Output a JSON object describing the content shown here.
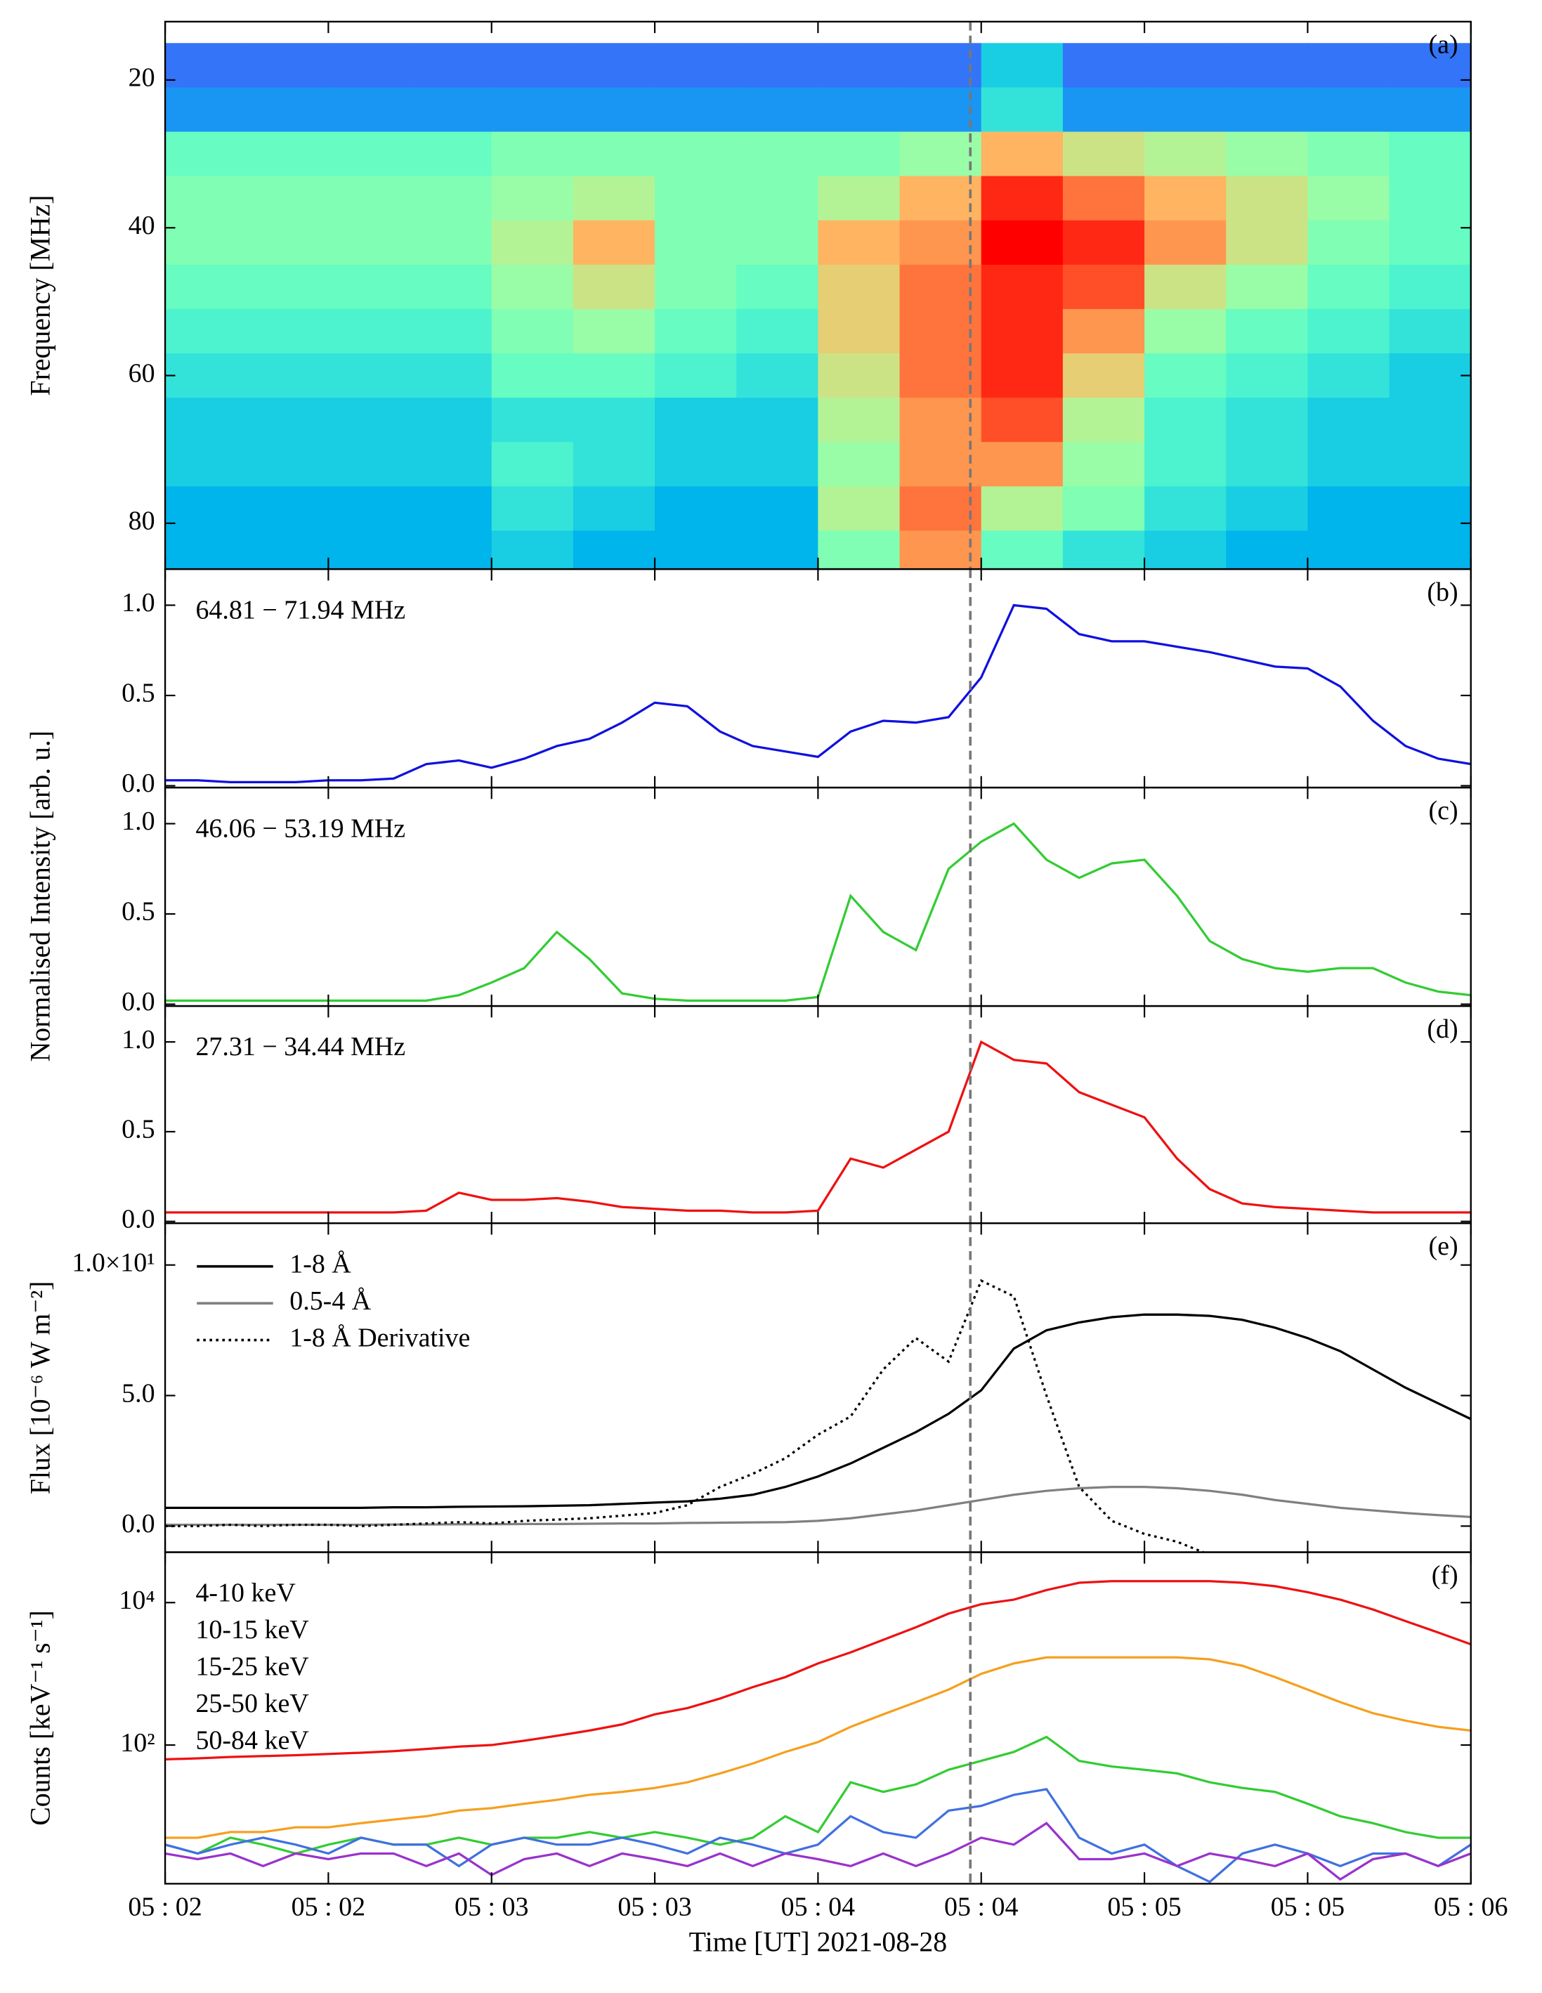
{
  "chart_data": [
    {
      "type": "heatmap",
      "panel_label": "(a)",
      "ylabel": "Frequency [MHz]",
      "colormap": "rainbow",
      "xlim": [
        0,
        240
      ],
      "ylim": [
        86.2,
        12.1
      ],
      "yticks": [
        20,
        40,
        60,
        80
      ],
      "vline": 148,
      "x_edges": [
        0,
        15,
        30,
        45,
        60,
        75,
        90,
        105,
        120,
        135,
        150,
        165,
        180,
        195,
        210,
        225,
        240
      ],
      "y_edges": [
        15,
        21,
        27,
        33,
        39,
        45,
        51,
        57,
        63,
        69,
        75,
        81,
        86
      ],
      "z": [
        [
          0.15,
          0.15,
          0.15,
          0.15,
          0.15,
          0.15,
          0.15,
          0.15,
          0.15,
          0.15,
          0.3,
          0.15,
          0.15,
          0.15,
          0.15,
          0.15
        ],
        [
          0.2,
          0.2,
          0.2,
          0.2,
          0.2,
          0.2,
          0.2,
          0.2,
          0.2,
          0.2,
          0.35,
          0.2,
          0.2,
          0.2,
          0.2,
          0.2
        ],
        [
          0.45,
          0.45,
          0.45,
          0.45,
          0.5,
          0.5,
          0.5,
          0.5,
          0.5,
          0.55,
          0.75,
          0.65,
          0.6,
          0.55,
          0.5,
          0.45
        ],
        [
          0.5,
          0.5,
          0.5,
          0.5,
          0.55,
          0.6,
          0.5,
          0.5,
          0.6,
          0.75,
          0.95,
          0.85,
          0.75,
          0.65,
          0.55,
          0.45
        ],
        [
          0.5,
          0.5,
          0.5,
          0.5,
          0.6,
          0.75,
          0.5,
          0.5,
          0.75,
          0.8,
          1.0,
          0.95,
          0.8,
          0.65,
          0.5,
          0.45
        ],
        [
          0.45,
          0.45,
          0.45,
          0.45,
          0.55,
          0.65,
          0.5,
          0.45,
          0.7,
          0.85,
          0.95,
          0.9,
          0.65,
          0.55,
          0.45,
          0.4
        ],
        [
          0.4,
          0.4,
          0.4,
          0.4,
          0.5,
          0.55,
          0.45,
          0.4,
          0.7,
          0.85,
          0.95,
          0.8,
          0.55,
          0.45,
          0.4,
          0.35
        ],
        [
          0.35,
          0.35,
          0.35,
          0.35,
          0.45,
          0.45,
          0.4,
          0.35,
          0.65,
          0.85,
          0.95,
          0.7,
          0.45,
          0.4,
          0.35,
          0.3
        ],
        [
          0.3,
          0.3,
          0.3,
          0.3,
          0.35,
          0.35,
          0.3,
          0.3,
          0.6,
          0.8,
          0.9,
          0.6,
          0.4,
          0.35,
          0.3,
          0.3
        ],
        [
          0.3,
          0.3,
          0.3,
          0.3,
          0.4,
          0.35,
          0.3,
          0.3,
          0.55,
          0.8,
          0.8,
          0.55,
          0.4,
          0.35,
          0.3,
          0.3
        ],
        [
          0.25,
          0.25,
          0.25,
          0.25,
          0.35,
          0.3,
          0.25,
          0.25,
          0.6,
          0.85,
          0.6,
          0.5,
          0.35,
          0.3,
          0.25,
          0.25
        ],
        [
          0.25,
          0.25,
          0.25,
          0.25,
          0.3,
          0.25,
          0.25,
          0.25,
          0.5,
          0.8,
          0.45,
          0.35,
          0.3,
          0.25,
          0.25,
          0.25
        ]
      ]
    },
    {
      "type": "line",
      "panel_label": "(b)",
      "ylabel": "Normalised Intensity [arb. u.]",
      "legend": "upper left",
      "legend_style": "text",
      "xlim": [
        0,
        240
      ],
      "ylim": [
        -0.01,
        1.2
      ],
      "yticks": [
        {
          "value": 0,
          "label": "0.0"
        },
        0.5,
        {
          "value": 1,
          "label": "1.0"
        }
      ],
      "vline": 148,
      "x": [
        0,
        6,
        12,
        18,
        24,
        30,
        36,
        42,
        48,
        54,
        60,
        66,
        72,
        78,
        84,
        90,
        96,
        102,
        108,
        114,
        120,
        126,
        132,
        138,
        144,
        150,
        156,
        162,
        168,
        174,
        180,
        186,
        192,
        198,
        204,
        210,
        216,
        222,
        228,
        234,
        240
      ],
      "series": [
        {
          "name": "64.81 − 71.94 MHz",
          "color": "#1010e0",
          "values": [
            0.03,
            0.03,
            0.02,
            0.02,
            0.02,
            0.03,
            0.03,
            0.04,
            0.12,
            0.14,
            0.1,
            0.15,
            0.22,
            0.26,
            0.35,
            0.46,
            0.44,
            0.3,
            0.22,
            0.19,
            0.16,
            0.3,
            0.36,
            0.35,
            0.38,
            0.6,
            1.0,
            0.98,
            0.84,
            0.8,
            0.8,
            0.77,
            0.74,
            0.7,
            0.66,
            0.65,
            0.55,
            0.36,
            0.22,
            0.15,
            0.12
          ]
        }
      ]
    },
    {
      "type": "line",
      "panel_label": "(c)",
      "legend": "upper left",
      "legend_style": "text",
      "xlim": [
        0,
        240
      ],
      "ylim": [
        -0.01,
        1.2
      ],
      "yticks": [
        {
          "value": 0,
          "label": "0.0"
        },
        0.5,
        {
          "value": 1,
          "label": "1.0"
        }
      ],
      "vline": 148,
      "x": [
        0,
        6,
        12,
        18,
        24,
        30,
        36,
        42,
        48,
        54,
        60,
        66,
        72,
        78,
        84,
        90,
        96,
        102,
        108,
        114,
        120,
        126,
        132,
        138,
        144,
        150,
        156,
        162,
        168,
        174,
        180,
        186,
        192,
        198,
        204,
        210,
        216,
        222,
        228,
        234,
        240
      ],
      "series": [
        {
          "name": "46.06 − 53.19 MHz",
          "color": "#33cc33",
          "values": [
            0.02,
            0.02,
            0.02,
            0.02,
            0.02,
            0.02,
            0.02,
            0.02,
            0.02,
            0.05,
            0.12,
            0.2,
            0.4,
            0.25,
            0.06,
            0.03,
            0.02,
            0.02,
            0.02,
            0.02,
            0.04,
            0.6,
            0.4,
            0.3,
            0.75,
            0.9,
            1.0,
            0.8,
            0.7,
            0.78,
            0.8,
            0.6,
            0.35,
            0.25,
            0.2,
            0.18,
            0.2,
            0.2,
            0.12,
            0.07,
            0.05
          ]
        }
      ]
    },
    {
      "type": "line",
      "panel_label": "(d)",
      "legend": "upper left",
      "legend_style": "text",
      "xlim": [
        0,
        240
      ],
      "ylim": [
        -0.01,
        1.2
      ],
      "yticks": [
        {
          "value": 0,
          "label": "0.0"
        },
        0.5,
        {
          "value": 1,
          "label": "1.0"
        }
      ],
      "vline": 148,
      "x": [
        0,
        6,
        12,
        18,
        24,
        30,
        36,
        42,
        48,
        54,
        60,
        66,
        72,
        78,
        84,
        90,
        96,
        102,
        108,
        114,
        120,
        126,
        132,
        138,
        144,
        150,
        156,
        162,
        168,
        174,
        180,
        186,
        192,
        198,
        204,
        210,
        216,
        222,
        228,
        234,
        240
      ],
      "series": [
        {
          "name": "27.31 − 34.44 MHz",
          "color": "#ee1111",
          "values": [
            0.05,
            0.05,
            0.05,
            0.05,
            0.05,
            0.05,
            0.05,
            0.05,
            0.06,
            0.16,
            0.12,
            0.12,
            0.13,
            0.11,
            0.08,
            0.07,
            0.06,
            0.06,
            0.05,
            0.05,
            0.06,
            0.35,
            0.3,
            0.4,
            0.5,
            1.0,
            0.9,
            0.88,
            0.72,
            0.65,
            0.58,
            0.35,
            0.18,
            0.1,
            0.08,
            0.07,
            0.06,
            0.05,
            0.05,
            0.05,
            0.05
          ]
        }
      ]
    },
    {
      "type": "line",
      "panel_label": "(e)",
      "ylabel": "Flux [10⁻⁶ W m⁻²]",
      "legend": "upper left",
      "legend_style": "lines",
      "xlim": [
        0,
        240
      ],
      "ylim": [
        -1,
        11.6
      ],
      "yticks": [
        {
          "value": 0,
          "label": "0.0"
        },
        {
          "value": 5,
          "label": "5.0"
        },
        {
          "value": 10,
          "label": "1.0×10¹"
        }
      ],
      "vline": 148,
      "x": [
        0,
        6,
        12,
        18,
        24,
        30,
        36,
        42,
        48,
        54,
        60,
        66,
        72,
        78,
        84,
        90,
        96,
        102,
        108,
        114,
        120,
        126,
        132,
        138,
        144,
        150,
        156,
        162,
        168,
        174,
        180,
        186,
        192,
        198,
        204,
        210,
        216,
        222,
        228,
        234,
        240
      ],
      "series": [
        {
          "name": "1-8 Å",
          "color": "#000000",
          "linestyle": "solid",
          "values": [
            0.7,
            0.7,
            0.7,
            0.7,
            0.7,
            0.7,
            0.7,
            0.72,
            0.72,
            0.74,
            0.75,
            0.76,
            0.78,
            0.8,
            0.85,
            0.9,
            0.95,
            1.05,
            1.2,
            1.5,
            1.9,
            2.4,
            3.0,
            3.6,
            4.3,
            5.2,
            6.8,
            7.5,
            7.8,
            8.0,
            8.1,
            8.1,
            8.05,
            7.9,
            7.6,
            7.2,
            6.7,
            6.0,
            5.3,
            4.7,
            4.1
          ]
        },
        {
          "name": "0.5-4 Å",
          "color": "#808080",
          "linestyle": "solid",
          "values": [
            0.05,
            0.05,
            0.05,
            0.05,
            0.05,
            0.05,
            0.05,
            0.06,
            0.06,
            0.07,
            0.07,
            0.08,
            0.08,
            0.09,
            0.1,
            0.1,
            0.12,
            0.13,
            0.14,
            0.15,
            0.2,
            0.3,
            0.45,
            0.6,
            0.8,
            1.0,
            1.2,
            1.35,
            1.45,
            1.5,
            1.5,
            1.45,
            1.35,
            1.2,
            1.0,
            0.85,
            0.7,
            0.6,
            0.5,
            0.42,
            0.35
          ]
        },
        {
          "name": "1-8 Å Derivative",
          "color": "#000000",
          "linestyle": "dotted",
          "values": [
            0.0,
            0.0,
            0.05,
            0.0,
            0.05,
            0.05,
            0.0,
            0.05,
            0.1,
            0.15,
            0.1,
            0.2,
            0.25,
            0.3,
            0.4,
            0.5,
            0.8,
            1.5,
            2.0,
            2.6,
            3.5,
            4.2,
            6.0,
            7.2,
            6.3,
            9.4,
            8.8,
            5.0,
            1.5,
            0.2,
            -0.3,
            -0.6,
            -1.1,
            null,
            null,
            null,
            null,
            null,
            null,
            null,
            null
          ]
        }
      ]
    },
    {
      "type": "line",
      "panel_label": "(f)",
      "ylabel": "Counts [keV⁻¹ s⁻¹]",
      "xlabel": "Time [UT] 2021-08-28",
      "log_y": true,
      "legend": "upper left",
      "legend_style": "text",
      "xlim": [
        0,
        240
      ],
      "ylim": [
        1.13,
        51000
      ],
      "yticks": [
        {
          "value": 100,
          "label": "10²"
        },
        {
          "value": 10000,
          "label": "10⁴"
        }
      ],
      "vline": 148,
      "xticks": [
        {
          "value": 0,
          "label": "05 : 02"
        },
        {
          "value": 30,
          "label": "05 : 02"
        },
        {
          "value": 60,
          "label": "05 : 03"
        },
        {
          "value": 90,
          "label": "05 : 03"
        },
        {
          "value": 120,
          "label": "05 : 04"
        },
        {
          "value": 150,
          "label": "05 : 04"
        },
        {
          "value": 180,
          "label": "05 : 05"
        },
        {
          "value": 210,
          "label": "05 : 05"
        },
        {
          "value": 240,
          "label": "05 : 06"
        }
      ],
      "x": [
        0,
        6,
        12,
        18,
        24,
        30,
        36,
        42,
        48,
        54,
        60,
        66,
        72,
        78,
        84,
        90,
        96,
        102,
        108,
        114,
        120,
        126,
        132,
        138,
        144,
        150,
        156,
        162,
        168,
        174,
        180,
        186,
        192,
        198,
        204,
        210,
        216,
        222,
        228,
        234,
        240
      ],
      "series": [
        {
          "name": "4-10 keV",
          "color": "#ee1111",
          "values": [
            63,
            65,
            68,
            70,
            72,
            75,
            78,
            82,
            88,
            95,
            100,
            115,
            135,
            160,
            195,
            270,
            330,
            450,
            650,
            900,
            1400,
            2000,
            3000,
            4500,
            7000,
            9500,
            11000,
            15000,
            19000,
            20000,
            20000,
            20000,
            20000,
            19000,
            17000,
            14000,
            11000,
            8000,
            5500,
            3800,
            2600
          ]
        },
        {
          "name": "10-15 keV",
          "color": "#f5a020",
          "values": [
            5,
            5,
            6,
            6,
            7,
            7,
            8,
            9,
            10,
            12,
            13,
            15,
            17,
            20,
            22,
            25,
            30,
            40,
            55,
            80,
            110,
            180,
            270,
            400,
            600,
            1000,
            1400,
            1700,
            1700,
            1700,
            1700,
            1700,
            1600,
            1300,
            900,
            600,
            400,
            280,
            220,
            180,
            160
          ]
        },
        {
          "name": "15-25 keV",
          "color": "#33cc33",
          "values": [
            4,
            3,
            5,
            4,
            3,
            4,
            5,
            4,
            4,
            5,
            4,
            5,
            5,
            6,
            5,
            6,
            5,
            4,
            5,
            10,
            6,
            30,
            22,
            28,
            45,
            60,
            80,
            130,
            60,
            50,
            45,
            40,
            30,
            25,
            22,
            15,
            10,
            8,
            6,
            5,
            5
          ]
        },
        {
          "name": "25-50 keV",
          "color": "#4070e0",
          "values": [
            4,
            3,
            4,
            5,
            4,
            3,
            5,
            4,
            4,
            2,
            4,
            5,
            4,
            4,
            5,
            4,
            3,
            5,
            4,
            3,
            4,
            10,
            6,
            5,
            12,
            14,
            20,
            24,
            5,
            3,
            4,
            2,
            1.2,
            3,
            4,
            3,
            2,
            3,
            3,
            2,
            4
          ]
        },
        {
          "name": "50-84 keV",
          "color": "#9933cc",
          "values": [
            3,
            2.5,
            3,
            2,
            3,
            2.5,
            3,
            3,
            2,
            3,
            1.5,
            2.5,
            3,
            2,
            3,
            2.5,
            2,
            3,
            2,
            3,
            2.5,
            2,
            3,
            2,
            3,
            5,
            4,
            8,
            2.5,
            2.5,
            3,
            2,
            3,
            2.5,
            2,
            3,
            1.3,
            2.5,
            3,
            2,
            3
          ]
        }
      ]
    }
  ]
}
